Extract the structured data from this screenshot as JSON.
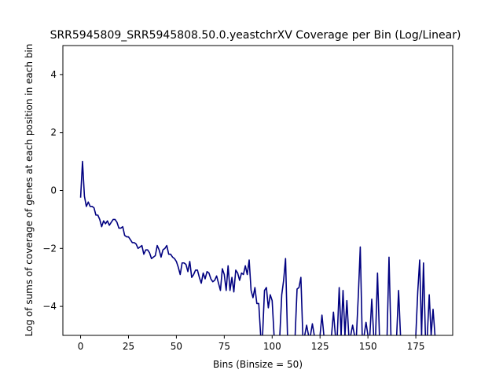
{
  "chart_data": {
    "type": "line",
    "title": "SRR5945809_SRR5945808.50.0.yeastchrXV Coverage per Bin (Log/Linear)",
    "xlabel": "Bins (Binsize = 50)",
    "ylabel": "Log of sums of coverage of genes at each position in each bin",
    "xlim": [
      -9.25,
      194.25
    ],
    "ylim": [
      -5,
      5
    ],
    "xticks": [
      0,
      25,
      50,
      75,
      100,
      125,
      150,
      175
    ],
    "yticks": [
      -4,
      -2,
      0,
      2,
      4
    ],
    "grid": false,
    "series": [
      {
        "color": "#000080",
        "segments": [
          [
            [
              0,
              -0.25
            ],
            [
              1,
              1.0
            ],
            [
              2,
              -0.2
            ],
            [
              3,
              -0.55
            ],
            [
              4,
              -0.4
            ],
            [
              5,
              -0.55
            ],
            [
              6,
              -0.55
            ],
            [
              7,
              -0.6
            ],
            [
              8,
              -0.85
            ],
            [
              9,
              -0.85
            ],
            [
              10,
              -1.0
            ],
            [
              11,
              -1.25
            ],
            [
              12,
              -1.05
            ],
            [
              13,
              -1.15
            ],
            [
              14,
              -1.05
            ],
            [
              15,
              -1.2
            ],
            [
              16,
              -1.1
            ],
            [
              17,
              -1.0
            ],
            [
              18,
              -1.0
            ],
            [
              19,
              -1.1
            ],
            [
              20,
              -1.3
            ],
            [
              21,
              -1.3
            ],
            [
              22,
              -1.25
            ],
            [
              23,
              -1.55
            ],
            [
              24,
              -1.6
            ],
            [
              25,
              -1.6
            ],
            [
              26,
              -1.7
            ],
            [
              27,
              -1.8
            ],
            [
              28,
              -1.8
            ],
            [
              29,
              -1.85
            ],
            [
              30,
              -2.0
            ],
            [
              31,
              -1.95
            ],
            [
              32,
              -1.9
            ],
            [
              33,
              -2.2
            ],
            [
              34,
              -2.05
            ],
            [
              35,
              -2.05
            ],
            [
              36,
              -2.15
            ],
            [
              37,
              -2.35
            ],
            [
              38,
              -2.3
            ],
            [
              39,
              -2.25
            ],
            [
              40,
              -1.9
            ],
            [
              41,
              -2.05
            ],
            [
              42,
              -2.3
            ],
            [
              43,
              -2.05
            ],
            [
              44,
              -2.0
            ],
            [
              45,
              -1.9
            ],
            [
              46,
              -2.2
            ],
            [
              47,
              -2.2
            ],
            [
              48,
              -2.3
            ],
            [
              49,
              -2.35
            ],
            [
              50,
              -2.45
            ],
            [
              51,
              -2.65
            ],
            [
              52,
              -2.9
            ],
            [
              53,
              -2.5
            ],
            [
              54,
              -2.5
            ],
            [
              55,
              -2.55
            ],
            [
              56,
              -2.8
            ],
            [
              57,
              -2.45
            ],
            [
              58,
              -3.0
            ],
            [
              59,
              -2.9
            ],
            [
              60,
              -2.75
            ],
            [
              61,
              -2.75
            ],
            [
              62,
              -3.0
            ],
            [
              63,
              -3.2
            ],
            [
              64,
              -2.85
            ],
            [
              65,
              -3.05
            ],
            [
              66,
              -2.8
            ],
            [
              67,
              -2.85
            ],
            [
              68,
              -3.05
            ],
            [
              69,
              -3.15
            ],
            [
              70,
              -3.1
            ],
            [
              71,
              -2.95
            ],
            [
              72,
              -3.2
            ],
            [
              73,
              -3.45
            ],
            [
              74,
              -2.7
            ],
            [
              75,
              -2.9
            ],
            [
              76,
              -3.45
            ],
            [
              77,
              -2.6
            ],
            [
              78,
              -3.45
            ],
            [
              79,
              -3.0
            ],
            [
              80,
              -3.5
            ],
            [
              81,
              -2.75
            ],
            [
              82,
              -2.85
            ],
            [
              83,
              -3.1
            ],
            [
              84,
              -2.85
            ],
            [
              85,
              -2.9
            ],
            [
              86,
              -2.6
            ],
            [
              87,
              -2.9
            ],
            [
              88,
              -2.4
            ],
            [
              89,
              -3.45
            ],
            [
              90,
              -3.7
            ],
            [
              91,
              -3.35
            ],
            [
              92,
              -3.9
            ],
            [
              93,
              -3.9
            ],
            [
              94,
              -5.0
            ]
          ],
          [
            [
              95,
              -5.0
            ],
            [
              96,
              -3.45
            ],
            [
              97,
              -3.35
            ],
            [
              98,
              -4.05
            ],
            [
              99,
              -3.6
            ],
            [
              100,
              -3.8
            ],
            [
              101,
              -5.0
            ]
          ],
          [
            [
              104,
              -5.0
            ],
            [
              105,
              -3.6
            ],
            [
              106,
              -3.1
            ],
            [
              107,
              -2.35
            ],
            [
              108,
              -5.0
            ]
          ],
          [
            [
              112,
              -5.0
            ],
            [
              113,
              -3.4
            ],
            [
              114,
              -3.35
            ],
            [
              115,
              -3.0
            ],
            [
              116,
              -5.0
            ]
          ],
          [
            [
              117,
              -5.0
            ],
            [
              118,
              -4.65
            ],
            [
              119,
              -5.0
            ]
          ],
          [
            [
              120,
              -5.0
            ],
            [
              121,
              -4.6
            ],
            [
              122,
              -5.0
            ]
          ],
          [
            [
              125,
              -5.0
            ],
            [
              126,
              -4.3
            ],
            [
              127,
              -5.0
            ]
          ],
          [
            [
              131,
              -5.0
            ],
            [
              132,
              -4.2
            ],
            [
              133,
              -5.0
            ]
          ],
          [
            [
              134,
              -5.0
            ],
            [
              135,
              -3.35
            ],
            [
              136,
              -5.0
            ]
          ],
          [
            [
              136,
              -5.0
            ],
            [
              137,
              -3.45
            ],
            [
              138,
              -5.0
            ]
          ],
          [
            [
              138,
              -5.0
            ],
            [
              139,
              -3.8
            ],
            [
              140,
              -5.0
            ]
          ],
          [
            [
              141,
              -5.0
            ],
            [
              142,
              -4.65
            ],
            [
              143,
              -5.0
            ]
          ],
          [
            [
              144,
              -5.0
            ],
            [
              145,
              -3.6
            ],
            [
              146,
              -1.95
            ],
            [
              147,
              -5.0
            ]
          ],
          [
            [
              148,
              -5.0
            ],
            [
              149,
              -4.55
            ],
            [
              150,
              -5.0
            ]
          ],
          [
            [
              151,
              -5.0
            ],
            [
              152,
              -3.75
            ],
            [
              153,
              -5.0
            ]
          ],
          [
            [
              154,
              -5.0
            ],
            [
              155,
              -2.85
            ],
            [
              156,
              -5.0
            ]
          ],
          [
            [
              160,
              -5.0
            ],
            [
              161,
              -2.3
            ],
            [
              162,
              -5.0
            ]
          ],
          [
            [
              165,
              -5.0
            ],
            [
              166,
              -3.45
            ],
            [
              167,
              -5.0
            ]
          ],
          [
            [
              175,
              -5.0
            ],
            [
              176,
              -3.5
            ],
            [
              177,
              -2.4
            ],
            [
              178,
              -5.0
            ]
          ],
          [
            [
              178,
              -5.0
            ],
            [
              179,
              -2.5
            ],
            [
              180,
              -5.0
            ]
          ],
          [
            [
              181,
              -5.0
            ],
            [
              182,
              -3.6
            ],
            [
              183,
              -5.0
            ]
          ],
          [
            [
              183,
              -5.0
            ],
            [
              184,
              -4.1
            ],
            [
              185,
              -5.0
            ]
          ]
        ]
      }
    ]
  }
}
